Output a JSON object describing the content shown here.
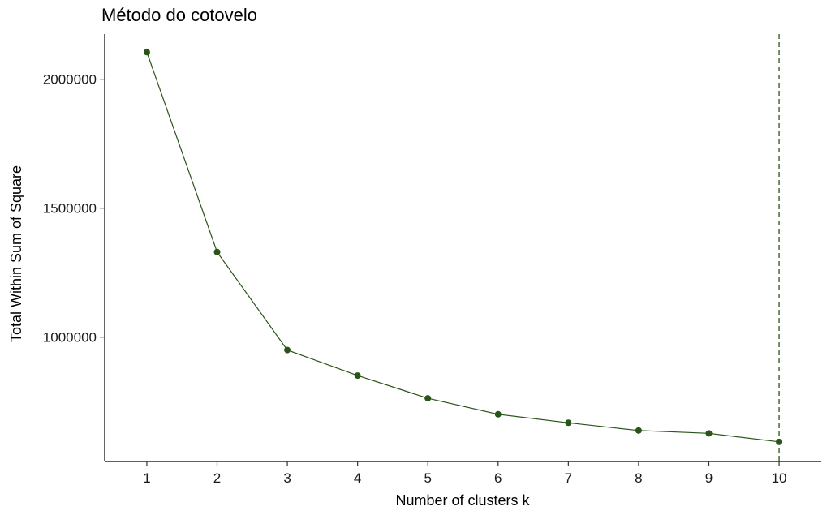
{
  "chart_data": {
    "type": "line",
    "title": "Método do cotovelo",
    "xlabel": "Number of clusters k",
    "ylabel": "Total Within Sum of Square",
    "x": [
      1,
      2,
      3,
      4,
      5,
      6,
      7,
      8,
      9,
      10
    ],
    "y": [
      2105000,
      1330000,
      950000,
      851000,
      763000,
      701000,
      668000,
      638000,
      627000,
      594000
    ],
    "xticks": [
      "1",
      "2",
      "3",
      "4",
      "5",
      "6",
      "7",
      "8",
      "9",
      "10"
    ],
    "yticks": [
      1000000,
      1500000,
      2000000
    ],
    "ytick_labels": [
      "1000000",
      "1500000",
      "2000000"
    ],
    "xlim": [
      0.4,
      10.6
    ],
    "ylim": [
      518000,
      2175000
    ],
    "optimal_k": 10,
    "grid": false,
    "legend": "none",
    "colors": {
      "series": "#2a5418",
      "vline": "#2a5418",
      "axis": "#000000"
    }
  }
}
